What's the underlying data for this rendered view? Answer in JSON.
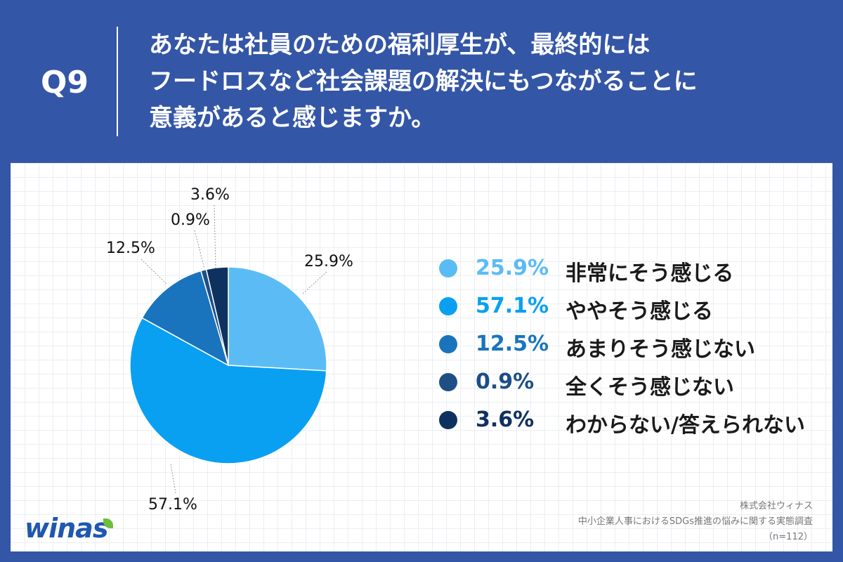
{
  "header": {
    "question_number": "Q9",
    "question_lines": [
      "あなたは社員のための福利厚生が、最終的には",
      "フードロスなど社会課題の解決にもつながることに",
      "意義があると感じますか。"
    ]
  },
  "colors": {
    "background": "#3456a6",
    "panel": "#ffffff",
    "slices": [
      "#5bbcf5",
      "#0aa0f2",
      "#1a74bd",
      "#1d4f86",
      "#0e3160"
    ]
  },
  "chart_data": {
    "type": "pie",
    "start": "12 o'clock",
    "direction": "clockwise",
    "slices": [
      {
        "label": "非常にそう感じる",
        "value": 25.9,
        "value_label": "25.9%"
      },
      {
        "label": "ややそう感じる",
        "value": 57.1,
        "value_label": "57.1%"
      },
      {
        "label": "あまりそう感じない",
        "value": 12.5,
        "value_label": "12.5%"
      },
      {
        "label": "全くそう感じない",
        "value": 0.9,
        "value_label": "0.9%"
      },
      {
        "label": "わからない/答えられない",
        "value": 3.6,
        "value_label": "3.6%"
      }
    ],
    "legend_position": "right"
  },
  "logo": {
    "text": "winas"
  },
  "source": {
    "company": "株式会社ウィナス",
    "survey": "中小企業人事におけるSDGs推進の悩みに関する実態調査",
    "sample": "（n=112）"
  }
}
